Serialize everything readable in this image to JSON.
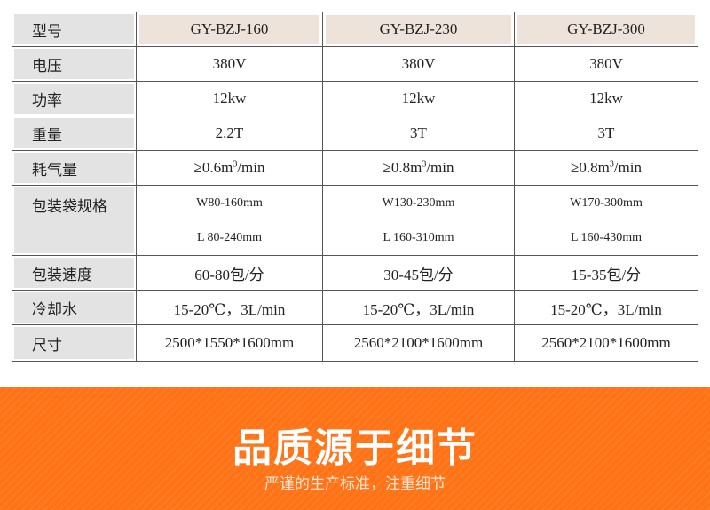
{
  "table": {
    "header": {
      "label": "型号",
      "models": [
        "GY-BZJ-160",
        "GY-BZJ-230",
        "GY-BZJ-300"
      ]
    },
    "rows": [
      {
        "label": "电压",
        "values": [
          "380V",
          "380V",
          "380V"
        ]
      },
      {
        "label": "功率",
        "values": [
          "12kw",
          "12kw",
          "12kw"
        ]
      },
      {
        "label": "重量",
        "values": [
          "2.2T",
          "3T",
          "3T"
        ]
      },
      {
        "label": "耗气量",
        "values": [
          "≥0.6m",
          "≥0.8m",
          "≥0.8m"
        ],
        "sup": "3",
        "suffix": "/min"
      },
      {
        "label": "包装袋规格",
        "width": [
          "W80-160mm",
          "W130-230mm",
          "W170-300mm"
        ],
        "length": [
          "L 80-240mm",
          "L 160-310mm",
          "L 160-430mm"
        ]
      },
      {
        "label": "包装速度",
        "values": [
          "60-80包/分",
          "30-45包/分",
          "15-35包/分"
        ]
      },
      {
        "label": "冷却水",
        "values": [
          "15-20℃，3L/min",
          "15-20℃，3L/min",
          "15-20℃，3L/min"
        ]
      },
      {
        "label": "尺寸",
        "values": [
          "2500*1550*1600mm",
          "2560*2100*1600mm",
          "2560*2100*1600mm"
        ]
      }
    ]
  },
  "banner": {
    "title": "品质源于细节",
    "subtitle": "严谨的生产标准，注重细节",
    "color": "#ff7316"
  }
}
